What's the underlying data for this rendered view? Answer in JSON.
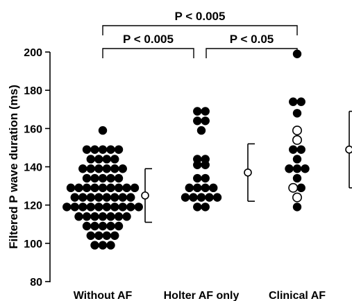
{
  "chart_data": {
    "type": "scatter",
    "ylabel": "Filtered P wave duration (ms)",
    "ylim": [
      80,
      200
    ],
    "yticks": [
      "80",
      "100",
      "120",
      "140",
      "160",
      "180",
      "200"
    ],
    "categories": [
      "Without AF",
      "Holter AF only",
      "Clinical AF"
    ],
    "groups": [
      {
        "name": "Without AF",
        "points": [
          {
            "y": 159,
            "filled": true
          },
          {
            "y": 149,
            "filled": true
          },
          {
            "y": 149,
            "filled": true
          },
          {
            "y": 149,
            "filled": true
          },
          {
            "y": 149,
            "filled": true
          },
          {
            "y": 149,
            "filled": true
          },
          {
            "y": 144,
            "filled": true
          },
          {
            "y": 144,
            "filled": true
          },
          {
            "y": 144,
            "filled": true
          },
          {
            "y": 144,
            "filled": true
          },
          {
            "y": 139,
            "filled": true
          },
          {
            "y": 139,
            "filled": true
          },
          {
            "y": 139,
            "filled": true
          },
          {
            "y": 139,
            "filled": true
          },
          {
            "y": 139,
            "filled": true
          },
          {
            "y": 139,
            "filled": true
          },
          {
            "y": 134,
            "filled": true
          },
          {
            "y": 134,
            "filled": true
          },
          {
            "y": 134,
            "filled": true
          },
          {
            "y": 134,
            "filled": true
          },
          {
            "y": 134,
            "filled": true
          },
          {
            "y": 129,
            "filled": true
          },
          {
            "y": 129,
            "filled": true
          },
          {
            "y": 129,
            "filled": true
          },
          {
            "y": 129,
            "filled": true
          },
          {
            "y": 129,
            "filled": true
          },
          {
            "y": 129,
            "filled": true
          },
          {
            "y": 129,
            "filled": true
          },
          {
            "y": 129,
            "filled": true
          },
          {
            "y": 129,
            "filled": true
          },
          {
            "y": 124,
            "filled": true
          },
          {
            "y": 124,
            "filled": true
          },
          {
            "y": 124,
            "filled": true
          },
          {
            "y": 124,
            "filled": true
          },
          {
            "y": 124,
            "filled": true
          },
          {
            "y": 124,
            "filled": true
          },
          {
            "y": 124,
            "filled": true
          },
          {
            "y": 124,
            "filled": true
          },
          {
            "y": 119,
            "filled": true
          },
          {
            "y": 119,
            "filled": true
          },
          {
            "y": 119,
            "filled": true
          },
          {
            "y": 119,
            "filled": true
          },
          {
            "y": 119,
            "filled": true
          },
          {
            "y": 119,
            "filled": true
          },
          {
            "y": 119,
            "filled": true
          },
          {
            "y": 119,
            "filled": true
          },
          {
            "y": 119,
            "filled": true
          },
          {
            "y": 119,
            "filled": true
          },
          {
            "y": 114,
            "filled": true
          },
          {
            "y": 114,
            "filled": true
          },
          {
            "y": 114,
            "filled": true
          },
          {
            "y": 114,
            "filled": true
          },
          {
            "y": 114,
            "filled": true
          },
          {
            "y": 114,
            "filled": true
          },
          {
            "y": 114,
            "filled": true
          },
          {
            "y": 109,
            "filled": true
          },
          {
            "y": 109,
            "filled": true
          },
          {
            "y": 109,
            "filled": true
          },
          {
            "y": 109,
            "filled": true
          },
          {
            "y": 109,
            "filled": true
          },
          {
            "y": 104,
            "filled": true
          },
          {
            "y": 104,
            "filled": true
          },
          {
            "y": 104,
            "filled": true
          },
          {
            "y": 104,
            "filled": true
          },
          {
            "y": 99,
            "filled": true
          },
          {
            "y": 99,
            "filled": true
          },
          {
            "y": 99,
            "filled": true
          }
        ],
        "mean": 125,
        "sd_low": 111,
        "sd_high": 139
      },
      {
        "name": "Holter AF only",
        "points": [
          {
            "y": 169,
            "filled": true
          },
          {
            "y": 169,
            "filled": true
          },
          {
            "y": 164,
            "filled": true
          },
          {
            "y": 164,
            "filled": true
          },
          {
            "y": 159,
            "filled": true
          },
          {
            "y": 144,
            "filled": true
          },
          {
            "y": 144,
            "filled": true
          },
          {
            "y": 141,
            "filled": true
          },
          {
            "y": 141,
            "filled": true
          },
          {
            "y": 134,
            "filled": true
          },
          {
            "y": 134,
            "filled": true
          },
          {
            "y": 129,
            "filled": true
          },
          {
            "y": 129,
            "filled": true
          },
          {
            "y": 129,
            "filled": true
          },
          {
            "y": 129,
            "filled": true
          },
          {
            "y": 124,
            "filled": true
          },
          {
            "y": 124,
            "filled": true
          },
          {
            "y": 124,
            "filled": true
          },
          {
            "y": 124,
            "filled": true
          },
          {
            "y": 124,
            "filled": true
          },
          {
            "y": 119,
            "filled": true
          },
          {
            "y": 119,
            "filled": true
          }
        ],
        "mean": 137,
        "sd_low": 122,
        "sd_high": 152
      },
      {
        "name": "Clinical AF",
        "points": [
          {
            "y": 199,
            "filled": true
          },
          {
            "y": 174,
            "filled": true
          },
          {
            "y": 174,
            "filled": true
          },
          {
            "y": 168,
            "filled": true
          },
          {
            "y": 159,
            "filled": false
          },
          {
            "y": 154,
            "filled": false
          },
          {
            "y": 149,
            "filled": true
          },
          {
            "y": 149,
            "filled": true
          },
          {
            "y": 144,
            "filled": true
          },
          {
            "y": 139,
            "filled": true
          },
          {
            "y": 139,
            "filled": true
          },
          {
            "y": 139,
            "filled": true
          },
          {
            "y": 134,
            "filled": true
          },
          {
            "y": 129,
            "filled": false
          },
          {
            "y": 129,
            "filled": true
          },
          {
            "y": 124,
            "filled": false
          },
          {
            "y": 119,
            "filled": true
          }
        ],
        "mean": 149,
        "sd_low": 129,
        "sd_high": 169
      }
    ],
    "comparisons": [
      {
        "from": "Without AF",
        "to": "Holter AF only",
        "label": "P < 0.005",
        "level": 1
      },
      {
        "from": "Holter AF only",
        "to": "Clinical AF",
        "label": "P < 0.05",
        "level": 1
      },
      {
        "from": "Without AF",
        "to": "Clinical AF",
        "label": "P < 0.005",
        "level": 2
      }
    ],
    "grid": false
  }
}
